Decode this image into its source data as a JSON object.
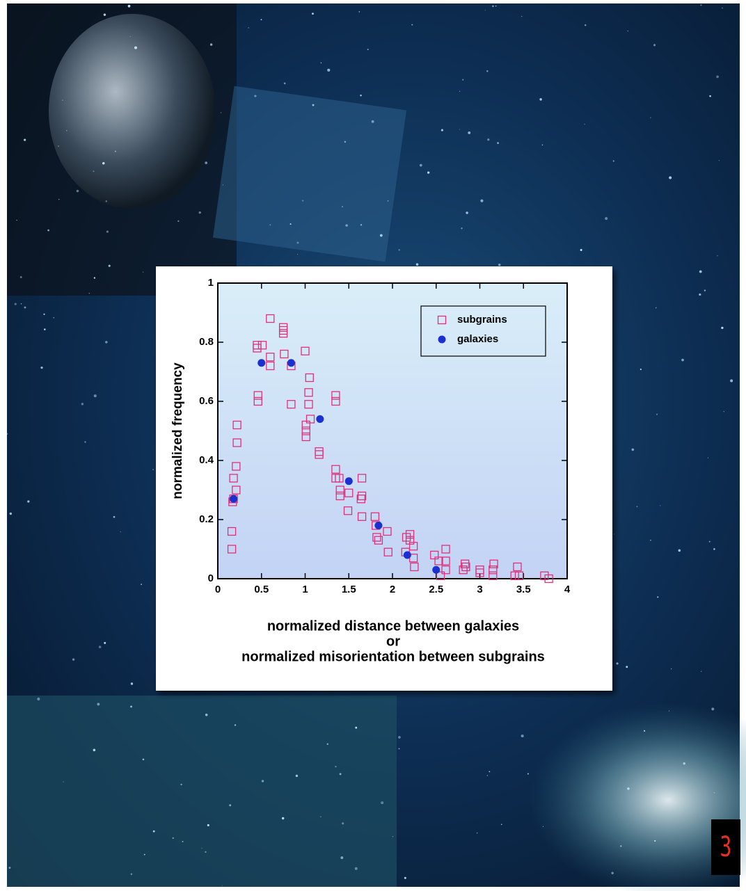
{
  "page_number": "3",
  "chart_data": {
    "type": "scatter",
    "xlabel": [
      "normalized distance between galaxies",
      "or",
      "normalized misorientation between subgrains"
    ],
    "ylabel": "normalized frequency",
    "xlim": [
      0,
      4
    ],
    "ylim": [
      0,
      1
    ],
    "xticks": [
      0,
      0.5,
      1,
      1.5,
      2,
      2.5,
      3,
      3.5,
      4
    ],
    "yticks": [
      0,
      0.2,
      0.4,
      0.6,
      0.8,
      1
    ],
    "legend": "upper right",
    "series": [
      {
        "name": "subgrains",
        "color": "#e0307a",
        "marker": "square",
        "x": [
          0.16,
          0.16,
          0.17,
          0.18,
          0.18,
          0.21,
          0.21,
          0.22,
          0.22,
          0.46,
          0.46,
          0.45,
          0.45,
          0.51,
          0.6,
          0.6,
          0.6,
          0.75,
          0.75,
          0.75,
          0.76,
          0.84,
          0.84,
          1.0,
          1.05,
          1.04,
          1.04,
          1.06,
          1.01,
          1.01,
          1.01,
          1.16,
          1.16,
          1.35,
          1.35,
          1.35,
          1.35,
          1.39,
          1.4,
          1.4,
          1.5,
          1.49,
          1.65,
          1.65,
          1.64,
          1.65,
          1.8,
          1.81,
          1.82,
          1.84,
          1.94,
          1.95,
          2.16,
          2.2,
          2.2,
          2.24,
          2.15,
          2.24,
          2.25,
          2.48,
          2.53,
          2.61,
          2.61,
          2.61,
          2.55,
          2.81,
          2.83,
          2.84,
          3.0,
          3.0,
          3.16,
          3.15,
          3.15,
          3.43,
          3.45,
          3.4,
          3.74,
          3.79
        ],
        "values": [
          0.1,
          0.16,
          0.26,
          0.27,
          0.34,
          0.3,
          0.38,
          0.46,
          0.52,
          0.62,
          0.6,
          0.79,
          0.78,
          0.79,
          0.88,
          0.75,
          0.72,
          0.85,
          0.84,
          0.83,
          0.76,
          0.59,
          0.72,
          0.77,
          0.68,
          0.63,
          0.59,
          0.54,
          0.52,
          0.5,
          0.48,
          0.43,
          0.42,
          0.37,
          0.34,
          0.62,
          0.6,
          0.34,
          0.3,
          0.28,
          0.29,
          0.23,
          0.34,
          0.28,
          0.27,
          0.21,
          0.21,
          0.18,
          0.14,
          0.13,
          0.16,
          0.09,
          0.14,
          0.15,
          0.13,
          0.11,
          0.09,
          0.07,
          0.04,
          0.08,
          0.06,
          0.1,
          0.06,
          0.03,
          0.01,
          0.03,
          0.05,
          0.04,
          0.03,
          0.02,
          0.05,
          0.03,
          0.01,
          0.04,
          0.01,
          0.01,
          0.01,
          0.0
        ]
      },
      {
        "name": "galaxies",
        "color": "#1a30d0",
        "marker": "circle",
        "x": [
          0.18,
          0.5,
          0.84,
          1.17,
          1.5,
          1.84,
          2.17,
          2.5
        ],
        "values": [
          0.27,
          0.73,
          0.73,
          0.54,
          0.33,
          0.18,
          0.08,
          0.03
        ]
      }
    ]
  }
}
